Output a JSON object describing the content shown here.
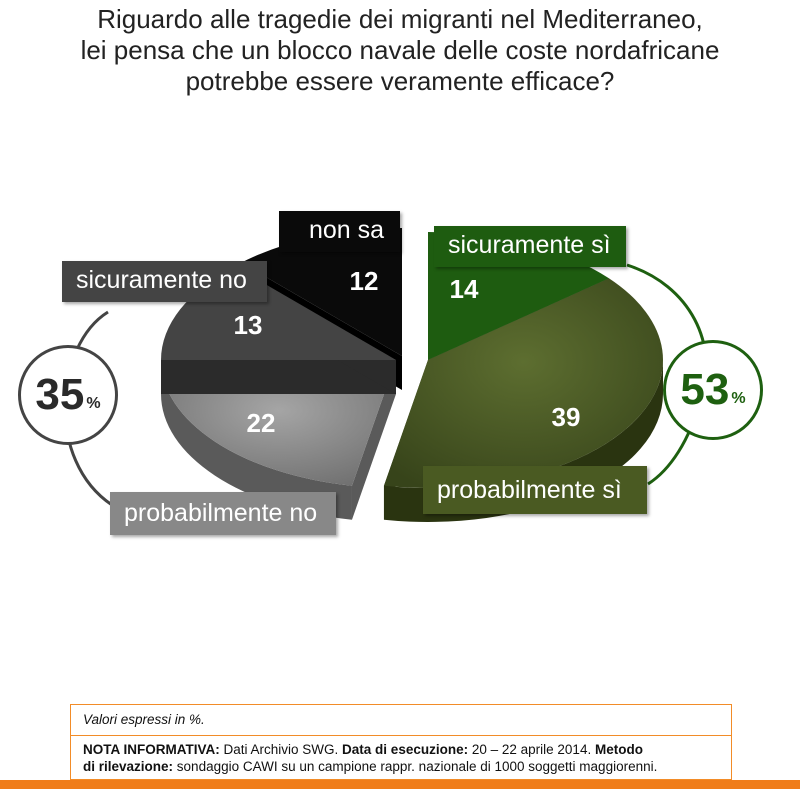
{
  "title_lines": [
    "Riguardo alle tragedie dei migranti nel Mediterraneo,",
    "lei pensa che un blocco navale delle coste nordafricane",
    "potrebbe essere veramente efficace?"
  ],
  "chart_data": {
    "type": "pie",
    "slices": [
      {
        "label": "sicuramente sì",
        "value": 14,
        "color": "#1e5c10"
      },
      {
        "label": "probabilmente sì",
        "value": 39,
        "color": "#4a5a22"
      },
      {
        "label": "probabilmente no",
        "value": 22,
        "color": "#888888"
      },
      {
        "label": "sicuramente no",
        "value": 13,
        "color": "#444444"
      },
      {
        "label": "non sa",
        "value": 12,
        "color": "#0a0a0a"
      }
    ],
    "groups": [
      {
        "value": "35",
        "unit": "%",
        "color": "#444444"
      },
      {
        "value": "53",
        "unit": "%",
        "color": "#1e6010"
      }
    ]
  },
  "notes": {
    "units": "Valori espressi in %.",
    "nota_label": "NOTA INFORMATIVA:",
    "nota_text": "Dati Archivio SWG.",
    "data_label": "Data di esecuzione:",
    "data_text": "20 – 22 aprile 2014.",
    "metodo_label_1": "Metodo",
    "metodo_label_2": "di rilevazione:",
    "metodo_text": "sondaggio CAWI su un campione rappr. nazionale di 1000 soggetti maggiorenni."
  }
}
